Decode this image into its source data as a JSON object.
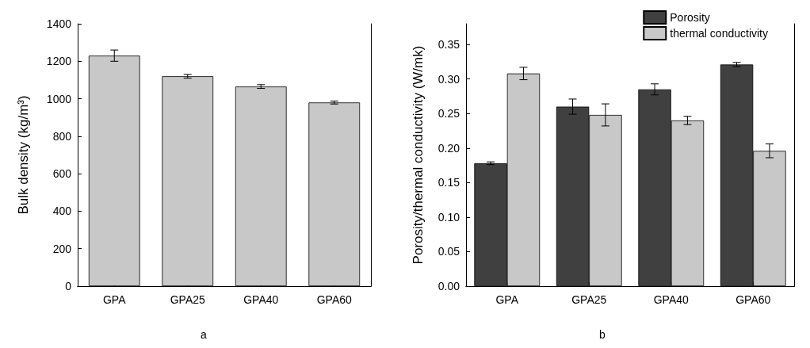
{
  "chart_data": [
    {
      "type": "bar",
      "ylabel": "Bulk density (kg/m³)",
      "categories": [
        "GPA",
        "GPA25",
        "GPA40",
        "GPA60"
      ],
      "values": [
        1230,
        1120,
        1065,
        980
      ],
      "errors": [
        30,
        10,
        10,
        8
      ],
      "color": "#c8c8c8",
      "ylim": [
        0,
        1400
      ],
      "yticks": [
        0,
        200,
        400,
        600,
        800,
        1000,
        1200,
        1400
      ],
      "grid": false,
      "legend": false,
      "annotations": [
        "a"
      ]
    },
    {
      "type": "bar",
      "ylabel": "Porosity/thermal conductivity (W/mk)",
      "categories": [
        "GPA",
        "GPA25",
        "GPA40",
        "GPA60"
      ],
      "series": [
        {
          "name": "Porosity",
          "color": "#404040",
          "values": [
            0.178,
            0.26,
            0.285,
            0.321
          ],
          "errors": [
            0.002,
            0.011,
            0.008,
            0.003
          ]
        },
        {
          "name": "thermal conductivity",
          "color": "#c8c8c8",
          "values": [
            0.308,
            0.248,
            0.24,
            0.196
          ],
          "errors": [
            0.009,
            0.016,
            0.006,
            0.01
          ]
        }
      ],
      "ylim": [
        0,
        0.38
      ],
      "yticks": [
        {
          "value": 0,
          "label": "0.00"
        },
        0.05,
        {
          "value": 0.1,
          "label": "0.10"
        },
        0.15,
        {
          "value": 0.2,
          "label": "0.20"
        },
        0.25,
        {
          "value": 0.3,
          "label": "0.30"
        },
        0.35
      ],
      "grid": false,
      "legend": "top right",
      "annotations": [
        "b"
      ]
    }
  ]
}
